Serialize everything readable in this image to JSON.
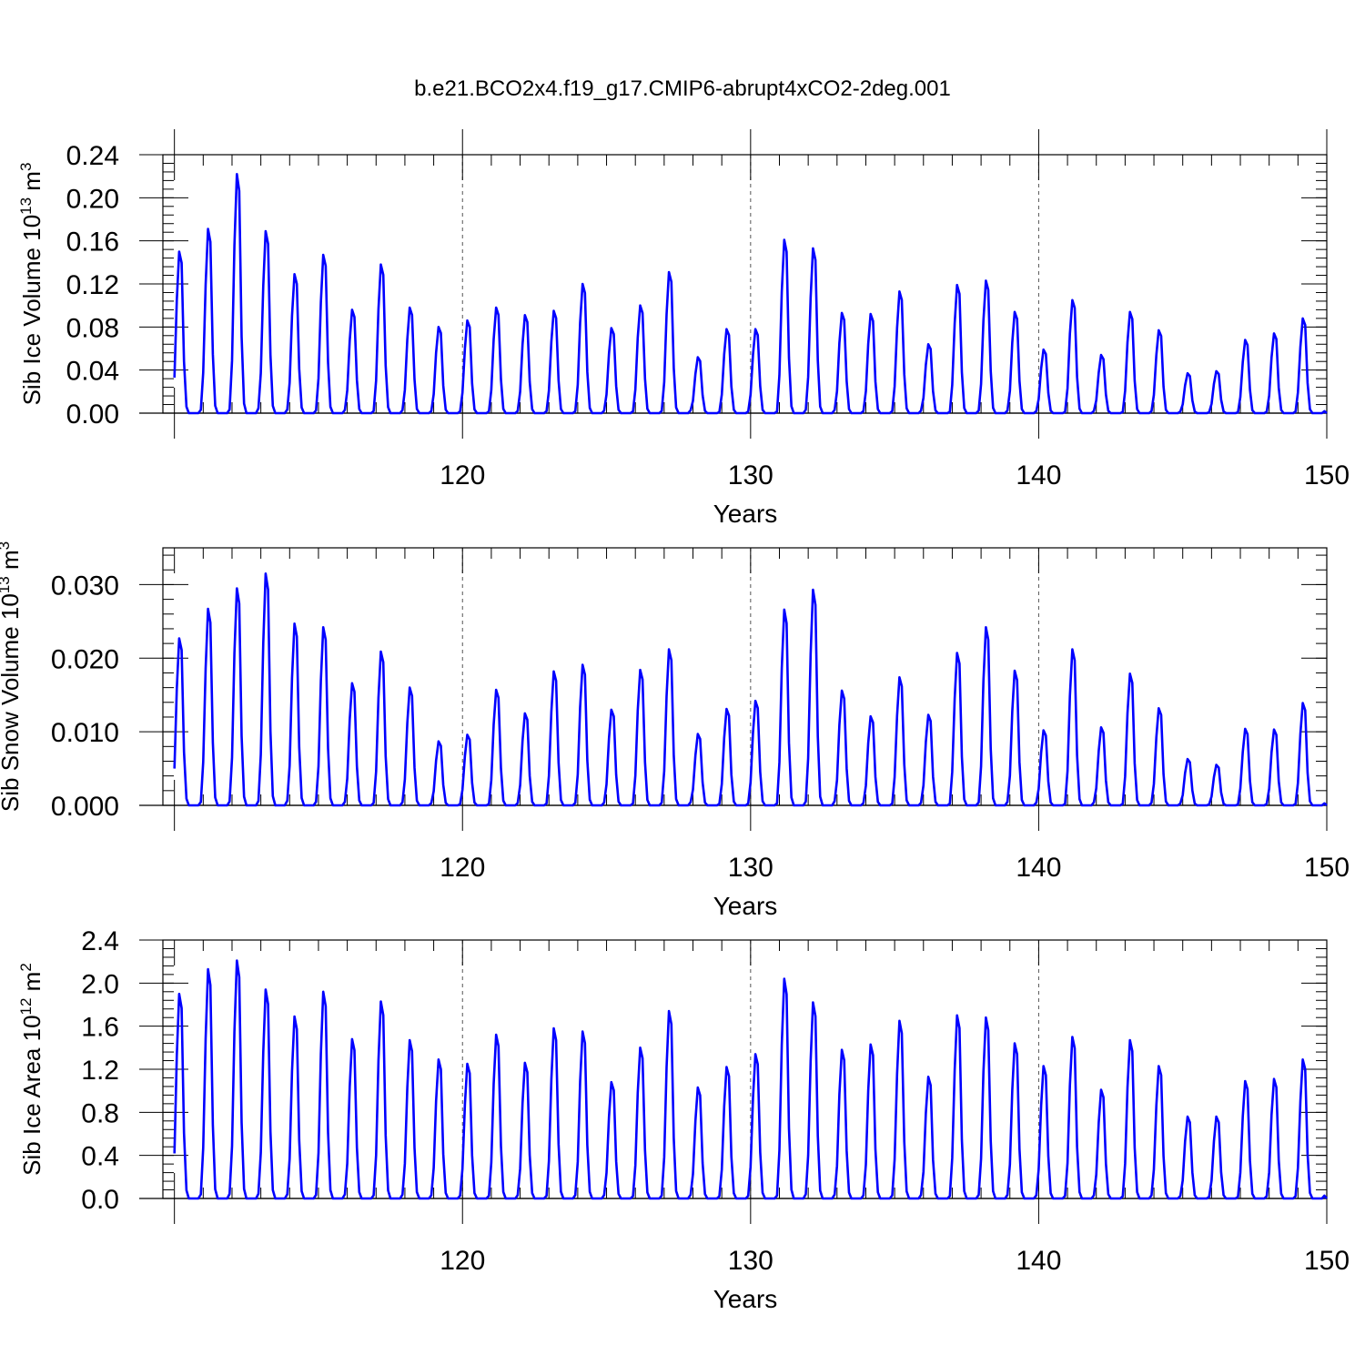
{
  "title": "b.e21.BCO2x4.f19_g17.CMIP6-abrupt4xCO2-2deg.001",
  "colors": {
    "line": "#0000ff",
    "axis": "#000000",
    "grid": "#555555"
  },
  "chart_data": [
    {
      "type": "line",
      "ylabel": {
        "text": "Sib Ice Volume 10",
        "exp": "13",
        "unit": " m",
        "unit_exp": "3"
      },
      "xlabel": "Years",
      "xlim": [
        109.6,
        150
      ],
      "ylim": [
        0,
        0.24
      ],
      "xticks": [
        120,
        130,
        140,
        150
      ],
      "xtick_labels": [
        "120",
        "130",
        "140",
        "150"
      ],
      "yticks": [
        0,
        0.04,
        0.08,
        0.12,
        0.16,
        0.2,
        0.24
      ],
      "ytick_labels": [
        "0.00",
        "0.04",
        "0.08",
        "0.12",
        "0.16",
        "0.20",
        "0.24"
      ],
      "grid": "dashed vertical at 120, 130, 140",
      "series": [
        {
          "x_start": 110,
          "x_step_months": 1,
          "annual_peaks": [
            0.15,
            0.171,
            0.222,
            0.169,
            0.129,
            0.147,
            0.096,
            0.138,
            0.098,
            0.08,
            0.086,
            0.098,
            0.091,
            0.095,
            0.12,
            0.079,
            0.1,
            0.131,
            0.052,
            0.078,
            0.078,
            0.161,
            0.153,
            0.093,
            0.092,
            0.113,
            0.064,
            0.119,
            0.123,
            0.094,
            0.059,
            0.105,
            0.054,
            0.094,
            0.077,
            0.037,
            0.039,
            0.068,
            0.074,
            0.088
          ]
        }
      ]
    },
    {
      "type": "line",
      "ylabel": {
        "text": "Sib Snow Volume 10",
        "exp": "13",
        "unit": " m",
        "unit_exp": "3"
      },
      "xlabel": "Years",
      "xlim": [
        109.6,
        150
      ],
      "ylim": [
        0,
        0.035
      ],
      "xticks": [
        120,
        130,
        140,
        150
      ],
      "xtick_labels": [
        "120",
        "130",
        "140",
        "150"
      ],
      "yticks": [
        0,
        0.01,
        0.02,
        0.03
      ],
      "ytick_labels": [
        "0.000",
        "0.010",
        "0.020",
        "0.030"
      ],
      "grid": "dashed vertical at 120, 130, 140",
      "series": [
        {
          "x_start": 110,
          "x_step_months": 1,
          "annual_peaks": [
            0.0227,
            0.0267,
            0.0295,
            0.0315,
            0.0247,
            0.0242,
            0.0166,
            0.0209,
            0.016,
            0.0087,
            0.0096,
            0.0157,
            0.0125,
            0.0182,
            0.0191,
            0.013,
            0.0184,
            0.0212,
            0.0097,
            0.0131,
            0.0142,
            0.0266,
            0.0293,
            0.0156,
            0.0121,
            0.0174,
            0.0123,
            0.0207,
            0.0242,
            0.0183,
            0.0102,
            0.0212,
            0.0106,
            0.0179,
            0.0132,
            0.0063,
            0.0055,
            0.0104,
            0.0103,
            0.0139
          ]
        }
      ]
    },
    {
      "type": "line",
      "ylabel": {
        "text": "Sib Ice Area 10",
        "exp": "12",
        "unit": " m",
        "unit_exp": "2"
      },
      "xlabel": "Years",
      "xlim": [
        109.6,
        150
      ],
      "ylim": [
        0,
        2.4
      ],
      "xticks": [
        120,
        130,
        140,
        150
      ],
      "xtick_labels": [
        "120",
        "130",
        "140",
        "150"
      ],
      "yticks": [
        0,
        0.4,
        0.8,
        1.2,
        1.6,
        2.0,
        2.4
      ],
      "ytick_labels": [
        "0.0",
        "0.4",
        "0.8",
        "1.2",
        "1.6",
        "2.0",
        "2.4"
      ],
      "grid": "dashed vertical at 120, 130, 140",
      "series": [
        {
          "x_start": 110,
          "x_step_months": 1,
          "annual_peaks": [
            1.9,
            2.13,
            2.21,
            1.94,
            1.69,
            1.92,
            1.48,
            1.83,
            1.47,
            1.29,
            1.25,
            1.52,
            1.26,
            1.58,
            1.55,
            1.08,
            1.4,
            1.74,
            1.03,
            1.22,
            1.34,
            2.04,
            1.82,
            1.38,
            1.43,
            1.65,
            1.13,
            1.7,
            1.68,
            1.44,
            1.23,
            1.5,
            1.01,
            1.47,
            1.23,
            0.76,
            0.76,
            1.09,
            1.11,
            1.29
          ]
        }
      ]
    }
  ]
}
